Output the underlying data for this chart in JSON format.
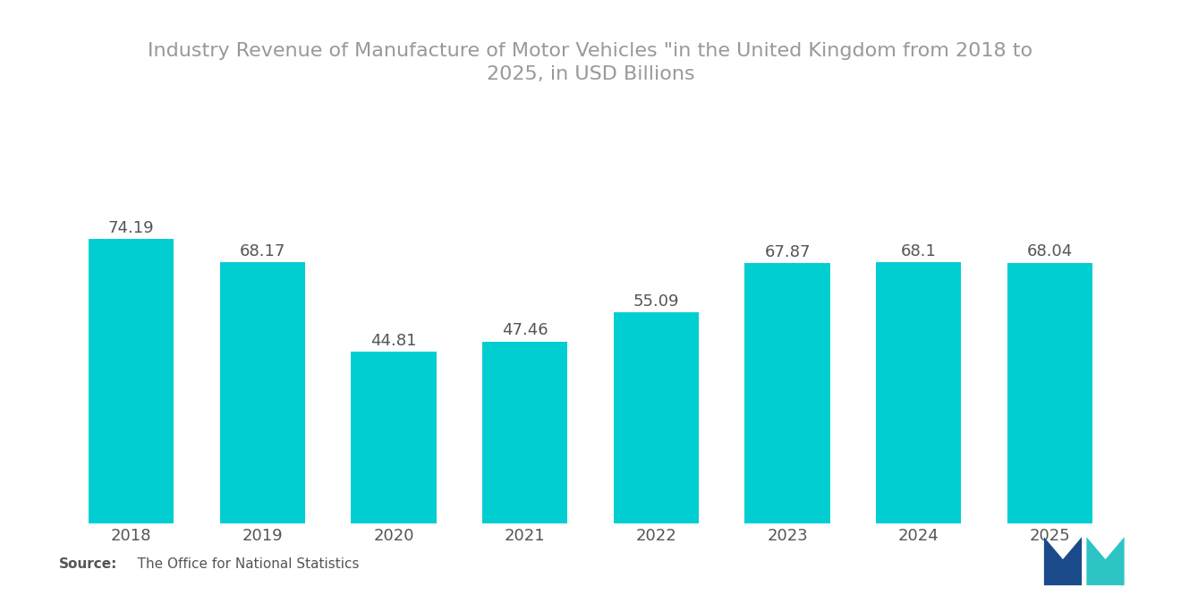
{
  "title_line1": "Industry Revenue of Manufacture of Motor Vehicles \"in the United Kingdom from 2018 to",
  "title_line2": "2025, in USD Billions",
  "years": [
    "2018",
    "2019",
    "2020",
    "2021",
    "2022",
    "2023",
    "2024",
    "2025"
  ],
  "values": [
    74.19,
    68.17,
    44.81,
    47.46,
    55.09,
    67.87,
    68.1,
    68.04
  ],
  "bar_color": "#00CED1",
  "background_color": "#ffffff",
  "label_color": "#555555",
  "title_color": "#999999",
  "source_bold": "Source:",
  "source_rest": "   The Office for National Statistics",
  "ylim": [
    0,
    90
  ],
  "bar_width": 0.65,
  "title_fontsize": 16,
  "label_fontsize": 13,
  "tick_fontsize": 13,
  "source_fontsize": 11
}
